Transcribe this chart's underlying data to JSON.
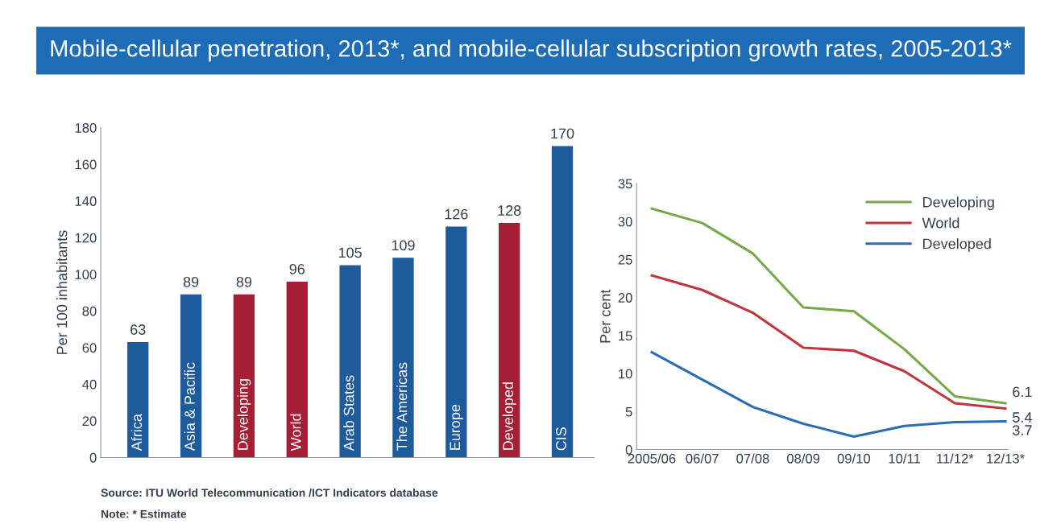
{
  "chart_data": [
    {
      "type": "bar",
      "title": "Mobile-cellular penetration, 2013*, and mobile-cellular subscription growth rates, 2005-2013*",
      "ylabel": "Per 100 inhabitants",
      "categories": [
        "Africa",
        "Asia & Pacific",
        "Developing",
        "World",
        "Arab States",
        "The Americas",
        "Europe",
        "Developed",
        "CIS"
      ],
      "values": [
        63,
        89,
        89,
        96,
        105,
        109,
        126,
        128,
        170
      ],
      "colors": [
        "#1d5b9c",
        "#1d5b9c",
        "#a51e36",
        "#a51e36",
        "#1d5b9c",
        "#1d5b9c",
        "#1d5b9c",
        "#a51e36",
        "#1d5b9c"
      ],
      "ylim": [
        0,
        180
      ],
      "yticks": [
        0,
        20,
        40,
        60,
        80,
        100,
        120,
        140,
        160,
        180
      ],
      "data_labels": true,
      "grid": false,
      "annotations": [
        "Source: ITU World Telecommunication /ICT Indicators database",
        "Note: * Estimate"
      ]
    },
    {
      "type": "line",
      "ylabel": "Per cent",
      "categories": [
        "2005/06",
        "06/07",
        "07/08",
        "08/09",
        "09/10",
        "10/11",
        "11/12*",
        "12/13*"
      ],
      "series": [
        {
          "name": "Developing",
          "color": "#77a94a",
          "values": [
            31.7,
            29.8,
            25.8,
            18.7,
            18.2,
            13.2,
            7.0,
            6.1
          ],
          "value_labels": [
            null,
            null,
            null,
            null,
            null,
            null,
            null,
            "6.1"
          ]
        },
        {
          "name": "World",
          "color": "#c0343c",
          "values": [
            22.9,
            21.0,
            18.0,
            13.4,
            13.0,
            10.3,
            6.1,
            5.4
          ],
          "value_labels": [
            null,
            null,
            null,
            null,
            null,
            null,
            null,
            "5.4"
          ]
        },
        {
          "name": "Developed",
          "color": "#2a6db5",
          "values": [
            12.8,
            9.2,
            5.6,
            3.4,
            1.7,
            3.1,
            3.6,
            3.7
          ],
          "value_labels": [
            null,
            null,
            null,
            null,
            null,
            null,
            null,
            "3.7"
          ]
        }
      ],
      "ylim": [
        0,
        35
      ],
      "yticks": [
        0,
        5,
        10,
        15,
        20,
        25,
        30,
        35
      ],
      "legend": "top right",
      "grid": false
    }
  ]
}
